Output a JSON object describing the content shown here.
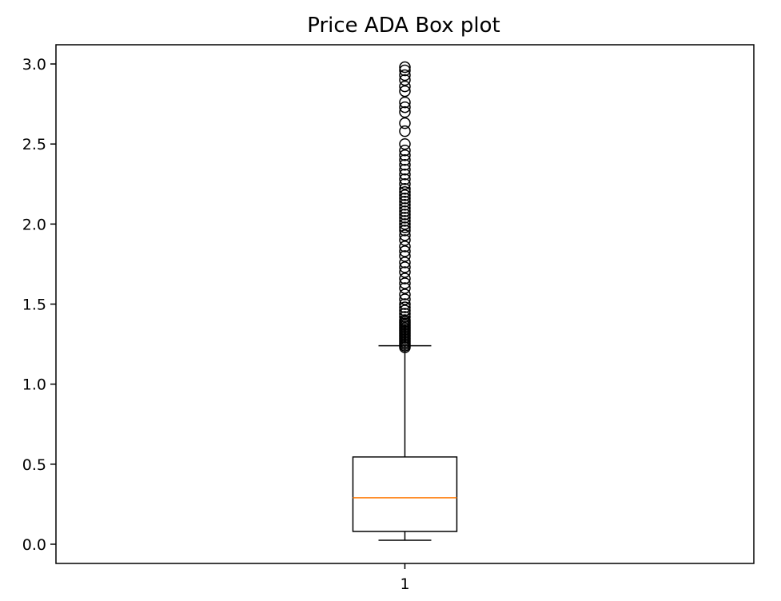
{
  "chart_data": {
    "type": "box",
    "title": "Price ADA Box plot",
    "xlabel": "",
    "ylabel": "",
    "categories": [
      "1"
    ],
    "ylim": [
      -0.12,
      3.12
    ],
    "yticks": [
      0.0,
      0.5,
      1.0,
      1.5,
      2.0,
      2.5,
      3.0
    ],
    "ytick_labels": [
      "0.0",
      "0.5",
      "1.0",
      "1.5",
      "2.0",
      "2.5",
      "3.0"
    ],
    "grid": false,
    "boxes": [
      {
        "category": "1",
        "whisker_low": 0.025,
        "q1": 0.08,
        "median": 0.29,
        "q3": 0.545,
        "whisker_high": 1.24,
        "outliers": [
          1.23,
          1.24,
          1.25,
          1.26,
          1.27,
          1.28,
          1.29,
          1.3,
          1.31,
          1.32,
          1.33,
          1.34,
          1.35,
          1.36,
          1.37,
          1.38,
          1.39,
          1.4,
          1.42,
          1.44,
          1.46,
          1.48,
          1.5,
          1.53,
          1.56,
          1.6,
          1.63,
          1.66,
          1.7,
          1.73,
          1.76,
          1.8,
          1.83,
          1.86,
          1.9,
          1.93,
          1.96,
          1.98,
          2.0,
          2.02,
          2.04,
          2.06,
          2.08,
          2.1,
          2.12,
          2.14,
          2.16,
          2.18,
          2.2,
          2.22,
          2.25,
          2.28,
          2.31,
          2.34,
          2.37,
          2.4,
          2.43,
          2.46,
          2.5,
          2.58,
          2.63,
          2.7,
          2.73,
          2.76,
          2.83,
          2.86,
          2.9,
          2.93,
          2.96,
          2.98
        ]
      }
    ],
    "colors": {
      "box": "#000000",
      "median": "#ff7f0e",
      "outlier_edge": "#000000",
      "background": "#ffffff"
    }
  }
}
